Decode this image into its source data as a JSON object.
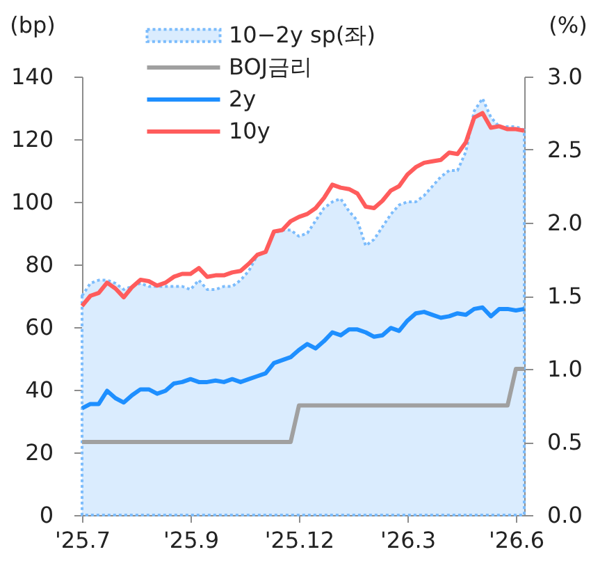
{
  "chart_data": {
    "type": "line",
    "categories": [
      "'25.7",
      null,
      null,
      null,
      null,
      null,
      null,
      null,
      null,
      null,
      null,
      null,
      null,
      "'25.9",
      null,
      null,
      null,
      null,
      null,
      null,
      null,
      null,
      null,
      null,
      null,
      null,
      "'25.12",
      null,
      null,
      null,
      null,
      null,
      null,
      null,
      null,
      null,
      null,
      null,
      null,
      "'26.3",
      null,
      null,
      null,
      null,
      null,
      null,
      null,
      null,
      null,
      null,
      null,
      null,
      "'26.6",
      null
    ],
    "ylabel": "(bp)",
    "y2label": "(%)",
    "ylim": [
      0,
      140
    ],
    "yticks": [
      0,
      20,
      40,
      60,
      80,
      100,
      120,
      140
    ],
    "y2lim": [
      0,
      3
    ],
    "y2ticks": [
      {
        "value": 0,
        "label": "0.0"
      },
      0.5,
      {
        "value": 1,
        "label": "1.0"
      },
      1.5,
      {
        "value": 2,
        "label": "2.0"
      },
      2.5,
      {
        "value": 3,
        "label": "3.0"
      }
    ],
    "grid": false,
    "legend": "top left",
    "series": [
      {
        "name": "10−2y sp(좌)",
        "type": "area",
        "color": "#7cbcfc",
        "line_style": "dotted",
        "values": [
          70,
          74,
          75,
          75,
          74,
          72,
          73,
          74,
          73,
          73,
          73,
          73,
          73,
          72,
          75,
          72,
          72,
          73,
          73,
          75,
          78,
          83,
          84,
          90,
          91,
          91,
          89,
          90,
          94,
          98,
          100,
          101,
          97,
          94,
          86,
          88,
          92,
          96,
          99,
          100,
          100,
          102,
          105,
          108,
          110,
          110,
          116,
          129,
          133,
          127,
          124,
          124,
          124,
          123
        ]
      },
      {
        "name": "BOJ금리",
        "color": "#a0a0a0",
        "axis": "y2",
        "values": [
          0.5,
          0.5,
          0.5,
          0.5,
          0.5,
          0.5,
          0.5,
          0.5,
          0.5,
          0.5,
          0.5,
          0.5,
          0.5,
          0.5,
          0.5,
          0.5,
          0.5,
          0.5,
          0.5,
          0.5,
          0.5,
          0.5,
          0.5,
          0.5,
          0.5,
          0.5,
          0.75,
          0.75,
          0.75,
          0.75,
          0.75,
          0.75,
          0.75,
          0.75,
          0.75,
          0.75,
          0.75,
          0.75,
          0.75,
          0.75,
          0.75,
          0.75,
          0.75,
          0.75,
          0.75,
          0.75,
          0.75,
          0.75,
          0.75,
          0.75,
          0.75,
          0.75,
          1.0,
          1.0
        ]
      },
      {
        "name": "2y",
        "color": "#1e8fff",
        "axis": "y2",
        "values": [
          0.73,
          0.76,
          0.76,
          0.85,
          0.8,
          0.77,
          0.82,
          0.86,
          0.86,
          0.83,
          0.85,
          0.9,
          0.91,
          0.93,
          0.91,
          0.91,
          0.92,
          0.91,
          0.93,
          0.91,
          0.93,
          0.95,
          0.97,
          1.04,
          1.06,
          1.08,
          1.13,
          1.17,
          1.14,
          1.19,
          1.25,
          1.23,
          1.27,
          1.27,
          1.25,
          1.22,
          1.23,
          1.28,
          1.26,
          1.33,
          1.38,
          1.39,
          1.37,
          1.35,
          1.36,
          1.38,
          1.37,
          1.41,
          1.42,
          1.36,
          1.41,
          1.41,
          1.4,
          1.41
        ]
      },
      {
        "name": "10y",
        "color": "#ff5c5c",
        "axis": "y2",
        "values": [
          1.43,
          1.5,
          1.52,
          1.59,
          1.55,
          1.49,
          1.56,
          1.61,
          1.6,
          1.57,
          1.59,
          1.63,
          1.65,
          1.65,
          1.69,
          1.63,
          1.64,
          1.64,
          1.66,
          1.67,
          1.72,
          1.78,
          1.8,
          1.94,
          1.95,
          2.01,
          2.04,
          2.06,
          2.1,
          2.17,
          2.26,
          2.24,
          2.23,
          2.2,
          2.11,
          2.1,
          2.15,
          2.22,
          2.25,
          2.33,
          2.38,
          2.41,
          2.42,
          2.43,
          2.48,
          2.47,
          2.55,
          2.72,
          2.75,
          2.65,
          2.66,
          2.64,
          2.64,
          2.63
        ]
      }
    ]
  }
}
